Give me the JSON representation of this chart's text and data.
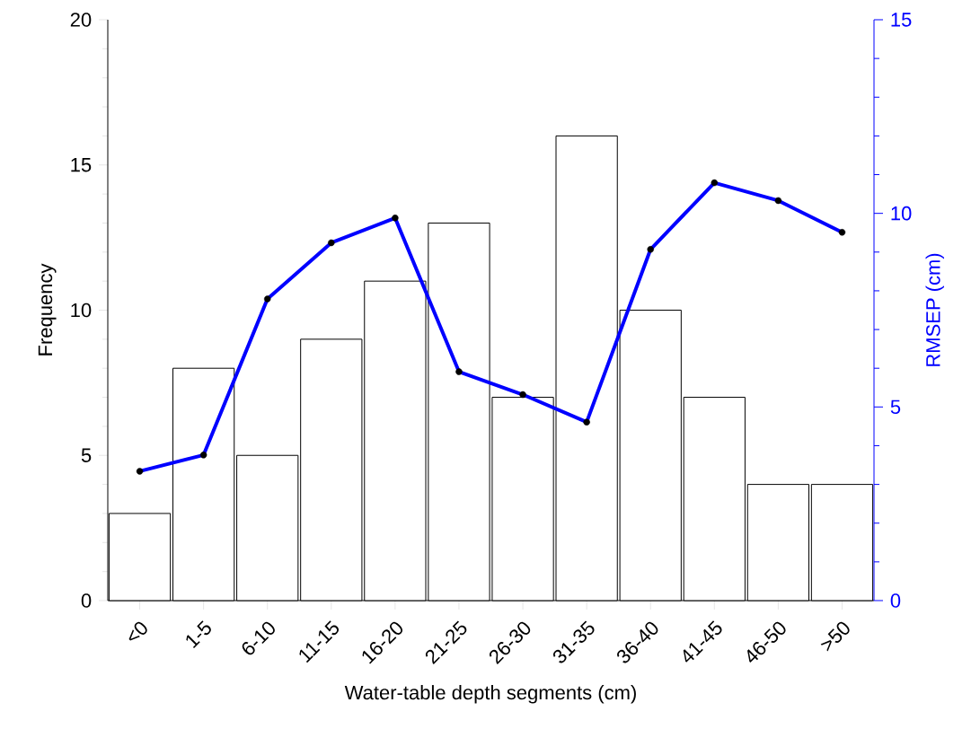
{
  "chart_data": {
    "type": "bar",
    "xlabel": "Water-table depth segments (cm)",
    "ylabel": "Frequency",
    "y2label": "RMSEP (cm)",
    "categories": [
      "<0",
      "1-5",
      "6-10",
      "11-15",
      "16-20",
      "21-25",
      "26-30",
      "31-35",
      "36-40",
      "41-45",
      "46-50",
      ">50"
    ],
    "ylim": [
      0,
      20
    ],
    "yticks": [
      0,
      5,
      10,
      15,
      20
    ],
    "y2lim": [
      0,
      15
    ],
    "y2ticks": [
      0,
      5,
      10,
      15
    ],
    "series": [
      {
        "color": "#ffffff",
        "values": [
          3,
          8,
          5,
          9,
          11,
          13,
          7,
          16,
          10,
          7,
          4,
          4
        ]
      },
      {
        "type": "line",
        "axis": "y2",
        "color": "#0000ff",
        "marker": "circle",
        "values": [
          3.34,
          3.76,
          7.79,
          9.24,
          9.88,
          5.91,
          5.32,
          4.61,
          9.07,
          10.79,
          10.33,
          9.51
        ]
      }
    ]
  }
}
